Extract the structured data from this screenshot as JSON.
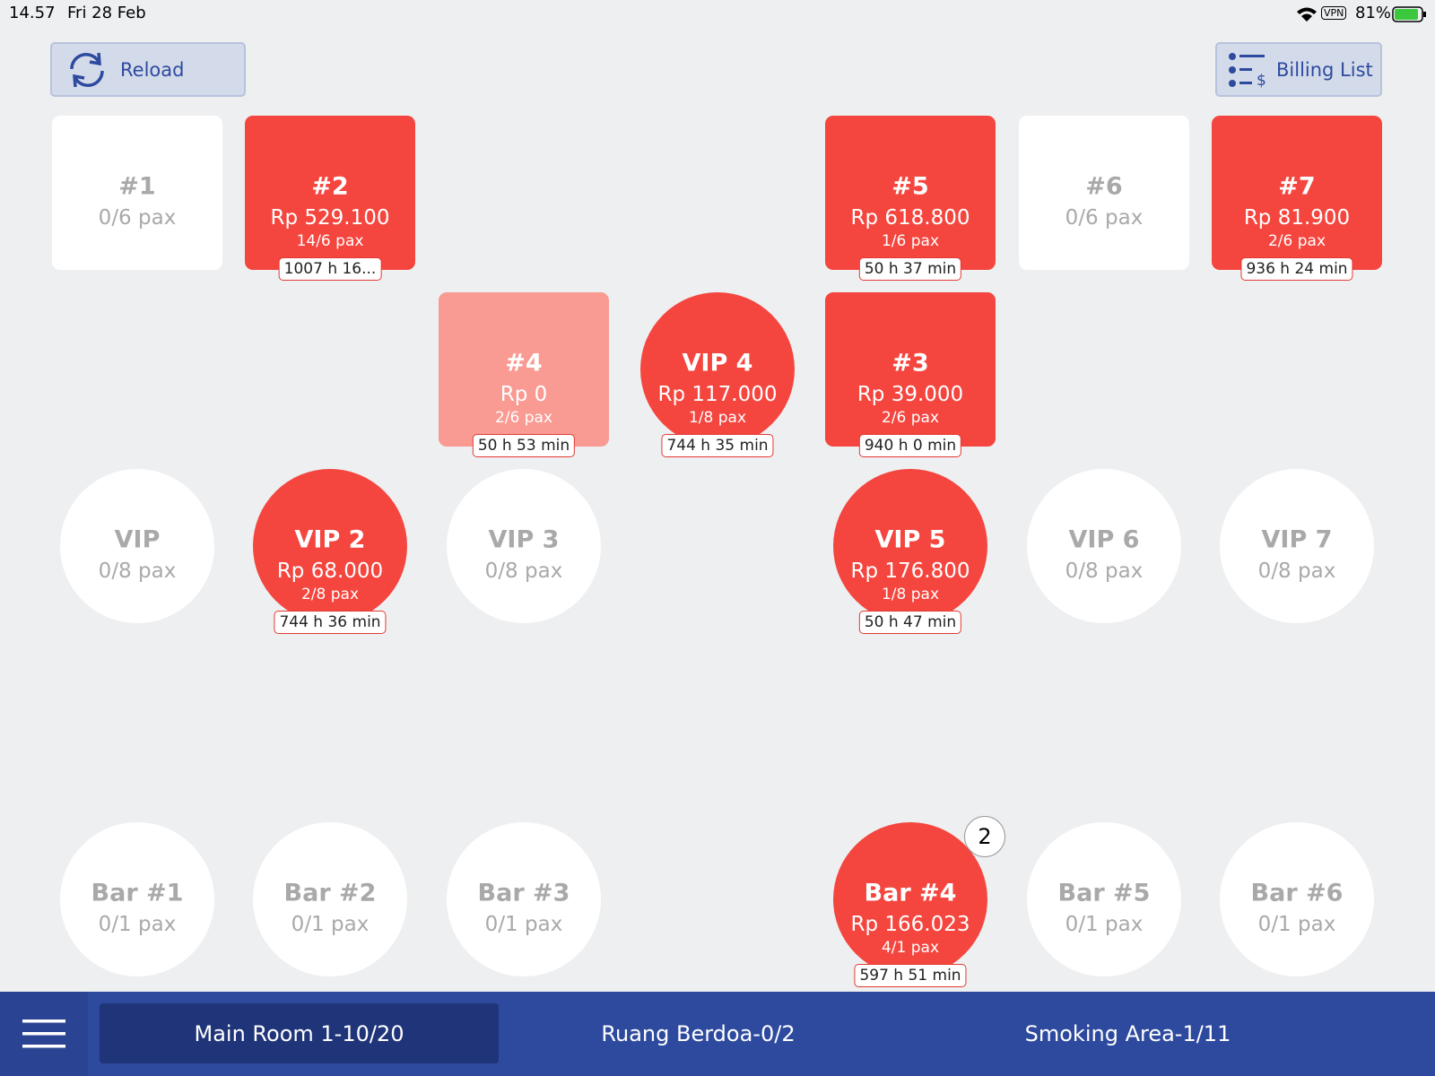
{
  "status_bar": {
    "time": "14.57",
    "date": "Fri 28 Feb",
    "vpn": "VPN",
    "battery": "81%"
  },
  "toolbar": {
    "reload": "Reload",
    "billing": "Billing List"
  },
  "tables": [
    {
      "label": "#1",
      "shape": "square",
      "status": "empty",
      "pax": "0/6 pax"
    },
    {
      "label": "#2",
      "shape": "square",
      "status": "occupied",
      "amount": "Rp 529.100",
      "pax": "14/6 pax",
      "timer": "1007 h 16..."
    },
    {
      "label": "#5",
      "shape": "square",
      "status": "occupied",
      "amount": "Rp 618.800",
      "pax": "1/6 pax",
      "timer": "50 h 37 min"
    },
    {
      "label": "#6",
      "shape": "square",
      "status": "empty",
      "pax": "0/6 pax"
    },
    {
      "label": "#7",
      "shape": "square",
      "status": "occupied",
      "amount": "Rp 81.900",
      "pax": "2/6 pax",
      "timer": "936 h 24 min"
    },
    {
      "label": "#4",
      "shape": "square",
      "status": "pending",
      "amount": "Rp 0",
      "pax": "2/6 pax",
      "timer": "50 h 53 min"
    },
    {
      "label": "VIP 4",
      "shape": "circle",
      "status": "occupied",
      "amount": "Rp 117.000",
      "pax": "1/8 pax",
      "timer": "744 h 35 min"
    },
    {
      "label": "#3",
      "shape": "square",
      "status": "occupied",
      "amount": "Rp 39.000",
      "pax": "2/6 pax",
      "timer": "940 h 0 min"
    },
    {
      "label": "VIP",
      "shape": "circle",
      "status": "empty",
      "pax": "0/8 pax"
    },
    {
      "label": "VIP 2",
      "shape": "circle",
      "status": "occupied",
      "amount": "Rp 68.000",
      "pax": "2/8 pax",
      "timer": "744 h 36 min"
    },
    {
      "label": "VIP 3",
      "shape": "circle",
      "status": "empty",
      "pax": "0/8 pax"
    },
    {
      "label": "VIP 5",
      "shape": "circle",
      "status": "occupied",
      "amount": "Rp 176.800",
      "pax": "1/8 pax",
      "timer": "50 h 47 min"
    },
    {
      "label": "VIP 6",
      "shape": "circle",
      "status": "empty",
      "pax": "0/8 pax"
    },
    {
      "label": "VIP 7",
      "shape": "circle",
      "status": "empty",
      "pax": "0/8 pax"
    },
    {
      "label": "Bar #1",
      "shape": "circle",
      "status": "empty",
      "pax": "0/1 pax"
    },
    {
      "label": "Bar #2",
      "shape": "circle",
      "status": "empty",
      "pax": "0/1 pax"
    },
    {
      "label": "Bar #3",
      "shape": "circle",
      "status": "empty",
      "pax": "0/1 pax"
    },
    {
      "label": "Bar #4",
      "shape": "circle",
      "status": "occupied",
      "amount": "Rp 166.023",
      "pax": "4/1 pax",
      "timer": "597 h 51 min",
      "badge": "2"
    },
    {
      "label": "Bar #5",
      "shape": "circle",
      "status": "empty",
      "pax": "0/1 pax"
    },
    {
      "label": "Bar #6",
      "shape": "circle",
      "status": "empty",
      "pax": "0/1 pax"
    }
  ],
  "tabs": [
    {
      "label": "Main Room 1-10/20",
      "active": true
    },
    {
      "label": "Ruang Berdoa-0/2",
      "active": false
    },
    {
      "label": "Smoking Area-1/11",
      "active": false
    }
  ]
}
